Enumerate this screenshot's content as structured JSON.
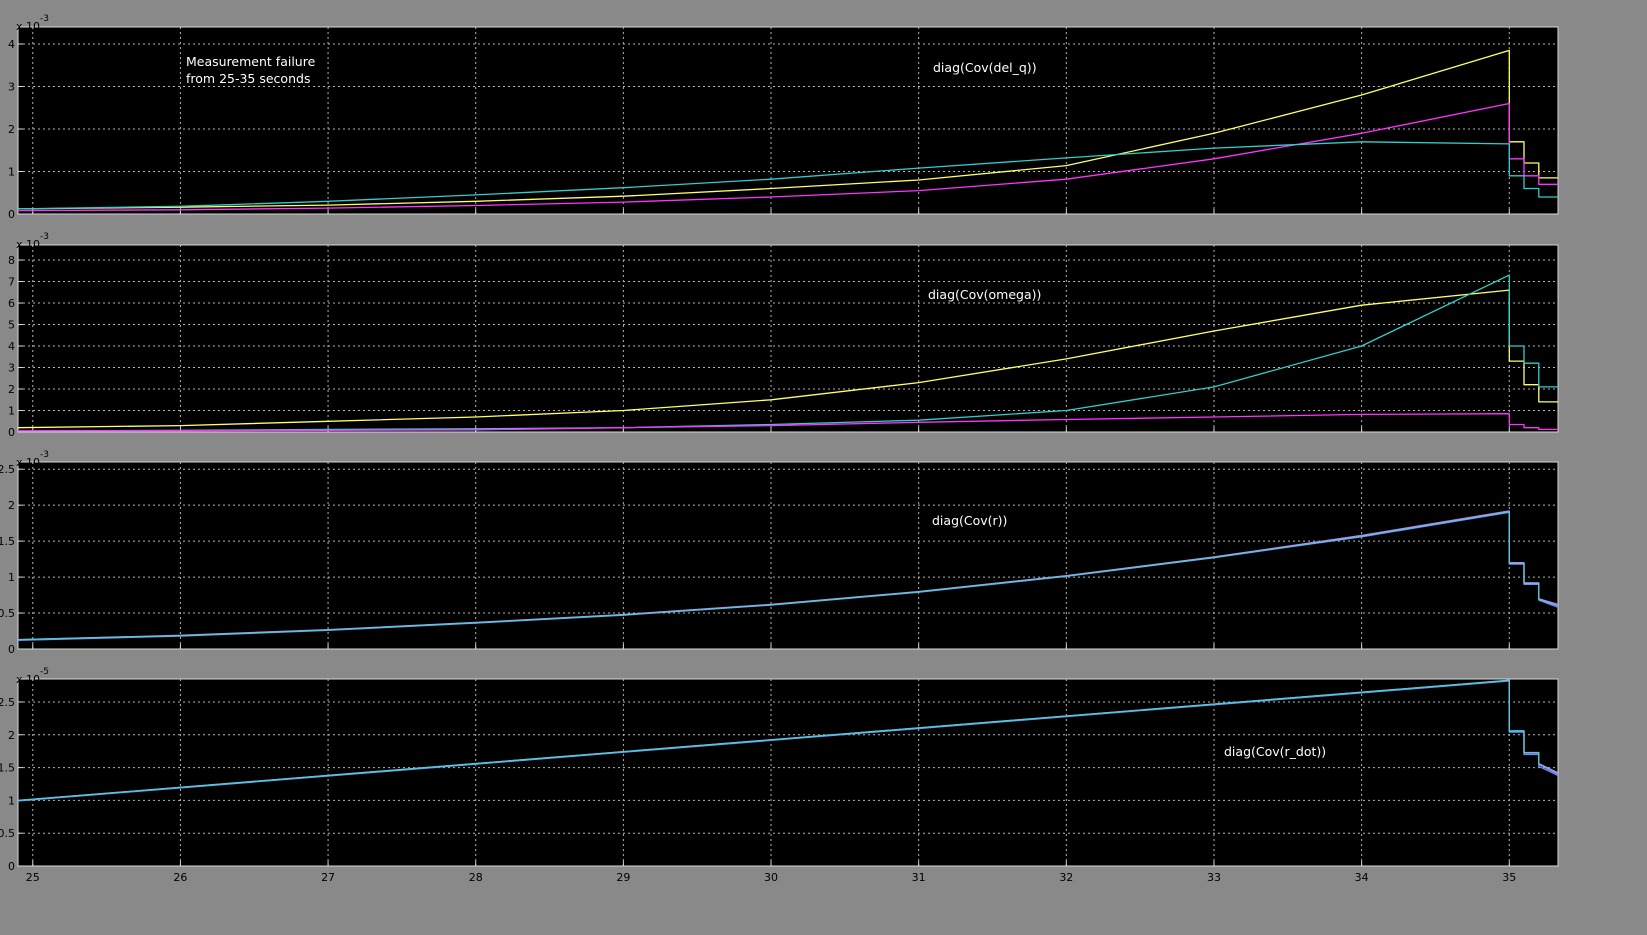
{
  "figure": {
    "background": "#898989",
    "axes_background": "#000000",
    "grid_color": "#b4b4b4"
  },
  "chart_data": [
    {
      "type": "line",
      "annotations": [
        "Measurement failure",
        "from 25-35 seconds",
        "diag(Cov(del_q))"
      ],
      "exponent": "-3",
      "xlim": [
        24.9,
        35.33
      ],
      "ylim": [
        0,
        4.4
      ],
      "xticks": [
        25,
        26,
        27,
        28,
        29,
        30,
        31,
        32,
        33,
        34,
        35
      ],
      "yticks": [
        0,
        1,
        2,
        3,
        4
      ],
      "ytick_labels": [
        "0",
        "1",
        "2",
        "3",
        "4"
      ],
      "grid": true,
      "series": [
        {
          "color": "#ffff66",
          "x": [
            24.9,
            26,
            27,
            28,
            29,
            30,
            31,
            32,
            33,
            34,
            35,
            35,
            35.1,
            35.1,
            35.2,
            35.2,
            35.33
          ],
          "y": [
            0.12,
            0.16,
            0.21,
            0.3,
            0.42,
            0.6,
            0.8,
            1.14,
            1.9,
            2.8,
            3.85,
            1.7,
            1.7,
            1.2,
            1.2,
            0.85,
            0.85
          ]
        },
        {
          "color": "#ff33ff",
          "x": [
            24.9,
            26,
            27,
            28,
            29,
            30,
            31,
            32,
            33,
            34,
            35,
            35,
            35.1,
            35.1,
            35.2,
            35.2,
            35.33
          ],
          "y": [
            0.08,
            0.1,
            0.14,
            0.2,
            0.28,
            0.4,
            0.55,
            0.82,
            1.3,
            1.9,
            2.6,
            1.3,
            1.3,
            0.9,
            0.9,
            0.7,
            0.7
          ]
        },
        {
          "color": "#33cccc",
          "x": [
            24.9,
            26,
            27,
            28,
            29,
            30,
            31,
            32,
            33,
            34,
            35,
            35,
            35.1,
            35.1,
            35.2,
            35.2,
            35.33
          ],
          "y": [
            0.12,
            0.18,
            0.3,
            0.45,
            0.62,
            0.82,
            1.08,
            1.32,
            1.55,
            1.7,
            1.65,
            0.9,
            0.9,
            0.6,
            0.6,
            0.4,
            0.4
          ]
        }
      ]
    },
    {
      "type": "line",
      "annotations": [
        "diag(Cov(omega))"
      ],
      "exponent": "-3",
      "xlim": [
        24.9,
        35.33
      ],
      "ylim": [
        0,
        8.7
      ],
      "xticks": [
        25,
        26,
        27,
        28,
        29,
        30,
        31,
        32,
        33,
        34,
        35
      ],
      "yticks": [
        0,
        1,
        2,
        3,
        4,
        5,
        6,
        7,
        8
      ],
      "ytick_labels": [
        "0",
        "1",
        "2",
        "3",
        "4",
        "5",
        "6",
        "7",
        "8"
      ],
      "grid": true,
      "series": [
        {
          "color": "#ffff66",
          "x": [
            24.9,
            26,
            27,
            28,
            29,
            30,
            31,
            32,
            33,
            34,
            35,
            35,
            35.1,
            35.1,
            35.2,
            35.2,
            35.33
          ],
          "y": [
            0.2,
            0.3,
            0.5,
            0.7,
            1.0,
            1.5,
            2.3,
            3.4,
            4.7,
            5.9,
            6.6,
            3.3,
            3.3,
            2.2,
            2.2,
            1.4,
            1.4
          ]
        },
        {
          "color": "#33cccc",
          "x": [
            24.9,
            26,
            27,
            28,
            29,
            30,
            31,
            32,
            33,
            34,
            35,
            35,
            35.1,
            35.1,
            35.2,
            35.2,
            35.33
          ],
          "y": [
            0.05,
            0.08,
            0.12,
            0.15,
            0.2,
            0.35,
            0.55,
            1.0,
            2.1,
            4.0,
            7.3,
            4.0,
            4.0,
            3.2,
            3.2,
            2.1,
            2.1
          ]
        },
        {
          "color": "#ff33ff",
          "x": [
            24.9,
            26,
            27,
            28,
            29,
            30,
            31,
            32,
            33,
            34,
            35,
            35,
            35.1,
            35.1,
            35.2,
            35.2,
            35.33
          ],
          "y": [
            0.05,
            0.06,
            0.08,
            0.1,
            0.2,
            0.3,
            0.45,
            0.58,
            0.7,
            0.82,
            0.85,
            0.35,
            0.35,
            0.2,
            0.2,
            0.12,
            0.12
          ]
        }
      ]
    },
    {
      "type": "line",
      "annotations": [
        "diag(Cov(r))"
      ],
      "exponent": "-3",
      "xlim": [
        24.9,
        35.33
      ],
      "ylim": [
        0,
        2.6
      ],
      "xticks": [
        25,
        26,
        27,
        28,
        29,
        30,
        31,
        32,
        33,
        34,
        35
      ],
      "yticks": [
        0,
        0.5,
        1,
        1.5,
        2,
        2.5
      ],
      "ytick_labels": [
        "0",
        "0.5",
        "1",
        "1.5",
        "2",
        "2.5"
      ],
      "grid": true,
      "series": [
        {
          "color": "#ff55ff",
          "x": [
            24.9,
            26,
            27,
            28,
            29,
            30,
            31,
            32,
            33,
            34,
            35,
            35,
            35.1,
            35.1,
            35.2,
            35.2,
            35.33
          ],
          "y": [
            0.13,
            0.19,
            0.27,
            0.37,
            0.48,
            0.62,
            0.8,
            1.02,
            1.28,
            1.58,
            1.92,
            1.2,
            1.2,
            0.92,
            0.92,
            0.7,
            0.62
          ]
        },
        {
          "color": "#5599ff",
          "x": [
            24.9,
            26,
            27,
            28,
            29,
            30,
            31,
            32,
            33,
            34,
            35,
            35,
            35.1,
            35.1,
            35.2,
            35.2,
            35.33
          ],
          "y": [
            0.12,
            0.18,
            0.26,
            0.36,
            0.47,
            0.61,
            0.79,
            1.01,
            1.27,
            1.56,
            1.9,
            1.18,
            1.18,
            0.9,
            0.9,
            0.68,
            0.58
          ]
        },
        {
          "color": "#55cccc",
          "x": [
            24.9,
            26,
            27,
            28,
            29,
            30,
            31,
            32,
            33,
            34,
            35,
            35,
            35.1,
            35.1,
            35.2,
            35.2,
            35.33
          ],
          "y": [
            0.13,
            0.185,
            0.265,
            0.365,
            0.475,
            0.615,
            0.795,
            1.015,
            1.275,
            1.57,
            1.91,
            1.19,
            1.19,
            0.91,
            0.91,
            0.69,
            0.6
          ]
        }
      ]
    },
    {
      "type": "line",
      "annotations": [
        "diag(Cov(r_dot))"
      ],
      "exponent": "-5",
      "xlim": [
        24.9,
        35.33
      ],
      "ylim": [
        0,
        2.85
      ],
      "xticks": [
        25,
        26,
        27,
        28,
        29,
        30,
        31,
        32,
        33,
        34,
        35
      ],
      "xtick_labels": [
        "25",
        "26",
        "27",
        "28",
        "29",
        "30",
        "31",
        "32",
        "33",
        "34",
        "35"
      ],
      "yticks": [
        0,
        0.5,
        1,
        1.5,
        2,
        2.5
      ],
      "ytick_labels": [
        "0",
        "0.5",
        "1",
        "1.5",
        "2",
        "2.5"
      ],
      "grid": true,
      "series": [
        {
          "color": "#ff55ff",
          "x": [
            24.9,
            35,
            35,
            35.1,
            35.1,
            35.2,
            35.2,
            35.33
          ],
          "y": [
            1.0,
            2.83,
            2.05,
            2.05,
            1.72,
            1.72,
            1.55,
            1.4
          ]
        },
        {
          "color": "#5599ff",
          "x": [
            24.9,
            35,
            35,
            35.1,
            35.1,
            35.2,
            35.2,
            35.33
          ],
          "y": [
            0.99,
            2.82,
            2.04,
            2.04,
            1.7,
            1.7,
            1.52,
            1.38
          ]
        },
        {
          "color": "#55cccc",
          "x": [
            24.9,
            35,
            35,
            35.1,
            35.1,
            35.2,
            35.2,
            35.33
          ],
          "y": [
            1.0,
            2.83,
            2.06,
            2.06,
            1.73,
            1.73,
            1.56,
            1.42
          ]
        }
      ]
    }
  ]
}
